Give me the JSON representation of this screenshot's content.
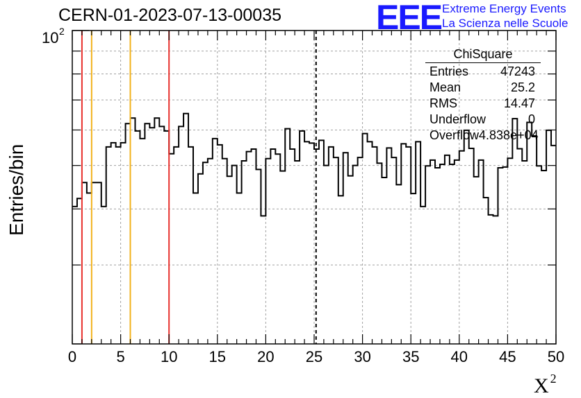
{
  "chart_data": {
    "type": "histogram",
    "title": "CERN-01-2023-07-13-00035",
    "xlabel": "X",
    "xlabel_superscript": "2",
    "ylabel": "Entries/bin",
    "x_range": [
      0,
      50
    ],
    "y_scale": "log",
    "y_range": [
      20,
      100
    ],
    "x_ticks": [
      "0",
      "5",
      "10",
      "15",
      "20",
      "25",
      "30",
      "35",
      "40",
      "45",
      "50"
    ],
    "y_tick_label": "10",
    "y_tick_label_exponent": "2",
    "grid": true,
    "bin_width": 0.5,
    "bin_counts": [
      40.5,
      42.2,
      45.8,
      43.4,
      45.8,
      45.8,
      40.5,
      55.0,
      56.2,
      55.0,
      56.2,
      62.0,
      63.8,
      59.7,
      57.4,
      62.0,
      60.7,
      63.8,
      61.1,
      59.7,
      53.1,
      55.0,
      61.1,
      65.3,
      55.0,
      43.4,
      47.9,
      50.8,
      51.8,
      57.4,
      55.6,
      51.8,
      47.3,
      50.0,
      43.4,
      51.2,
      53.7,
      54.4,
      49.0,
      38.6,
      51.8,
      54.4,
      53.0,
      48.6,
      60.4,
      54.4,
      51.2,
      59.7,
      56.5,
      56.1,
      54.4,
      56.9,
      50.0,
      55.0,
      52.1,
      42.8,
      53.4,
      47.4,
      50.0,
      52.1,
      58.9,
      56.5,
      55.0,
      50.6,
      47.0,
      54.7,
      52.1,
      45.3,
      55.9,
      55.0,
      43.3,
      56.5,
      40.5,
      49.9,
      51.4,
      49.4,
      50.3,
      52.7,
      50.3,
      51.4,
      53.9,
      59.9,
      54.6,
      47.2,
      51.4,
      42.4,
      38.8,
      38.6,
      49.4,
      49.6,
      51.9,
      63.6,
      54.5,
      51.2,
      62.4,
      58.2,
      49.9,
      48.7,
      59.9,
      55.4
    ],
    "reference_lines": [
      {
        "x": 1,
        "color": "#e8302c",
        "style": "solid"
      },
      {
        "x": 2,
        "color": "#f2b21b",
        "style": "solid"
      },
      {
        "x": 6,
        "color": "#f2b21b",
        "style": "solid"
      },
      {
        "x": 10,
        "color": "#e8302c",
        "style": "solid"
      },
      {
        "x": 25.2,
        "color": "#000000",
        "style": "dashed"
      }
    ]
  },
  "stats_box": {
    "title": "ChiSquare",
    "rows": [
      {
        "label": "Entries",
        "value": "47243"
      },
      {
        "label": "Mean",
        "value": "25.2"
      },
      {
        "label": "RMS",
        "value": "14.47"
      },
      {
        "label": "Underflow",
        "value": "0"
      },
      {
        "label": "Overflow",
        "value": "4.838e+04"
      }
    ]
  },
  "logo": {
    "mark": "EEE",
    "line1": "Extreme Energy Events",
    "line2": "La Scienza nelle Scuole"
  },
  "colors": {
    "histogram": "#000000",
    "grid": "#a0a0a0",
    "logo": "#1a1aff"
  }
}
